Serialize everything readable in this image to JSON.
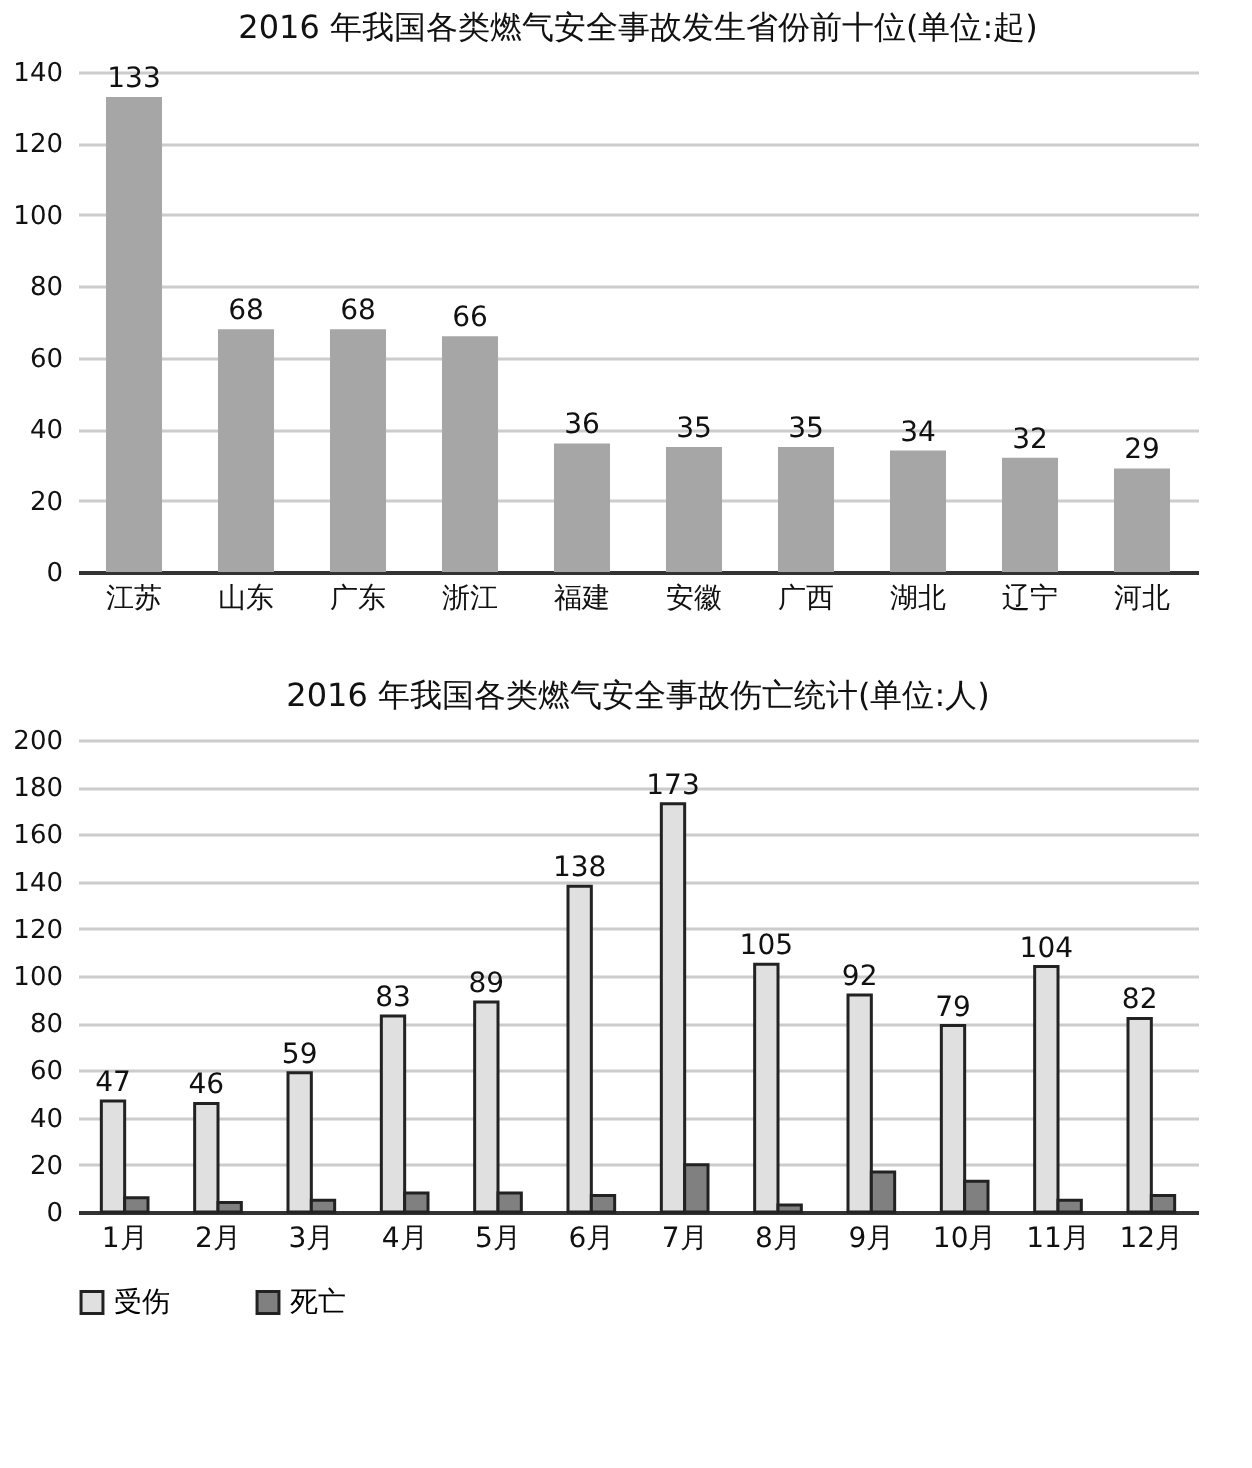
{
  "chart_data": [
    {
      "type": "bar",
      "title": "2016 年我国各类燃气安全事故发生省份前十位(单位:起)",
      "categories": [
        "江苏",
        "山东",
        "广东",
        "浙江",
        "福建",
        "安徽",
        "广西",
        "湖北",
        "辽宁",
        "河北"
      ],
      "values": [
        133,
        68,
        68,
        66,
        36,
        35,
        35,
        34,
        32,
        29
      ],
      "color": "#a6a6a6",
      "ylim": [
        0,
        140
      ],
      "yticks": [
        0,
        20,
        40,
        60,
        80,
        100,
        120,
        140
      ],
      "grid": "y",
      "data_labels": true
    },
    {
      "type": "bar",
      "title": "2016 年我国各类燃气安全事故伤亡统计(单位:人)",
      "categories": [
        "1月",
        "2月",
        "3月",
        "4月",
        "5月",
        "6月",
        "7月",
        "8月",
        "9月",
        "10月",
        "11月",
        "12月"
      ],
      "series": [
        {
          "name": "受伤",
          "color": "#e0e0e0",
          "values": [
            47,
            46,
            59,
            83,
            89,
            138,
            173,
            105,
            92,
            79,
            104,
            82
          ],
          "value_labels": [
            "47",
            "46",
            "59",
            "83",
            "89",
            "138",
            "173",
            "105",
            "92",
            "79",
            "104",
            "82"
          ]
        },
        {
          "name": "死亡",
          "color": "#808080",
          "values": [
            6,
            4,
            5,
            8,
            8,
            7,
            20,
            3,
            17,
            13,
            5,
            7
          ]
        }
      ],
      "ylim": [
        0,
        200
      ],
      "yticks": [
        0,
        20,
        40,
        60,
        80,
        100,
        120,
        140,
        160,
        180,
        200
      ],
      "grid": "y",
      "legend": "bottom"
    }
  ]
}
